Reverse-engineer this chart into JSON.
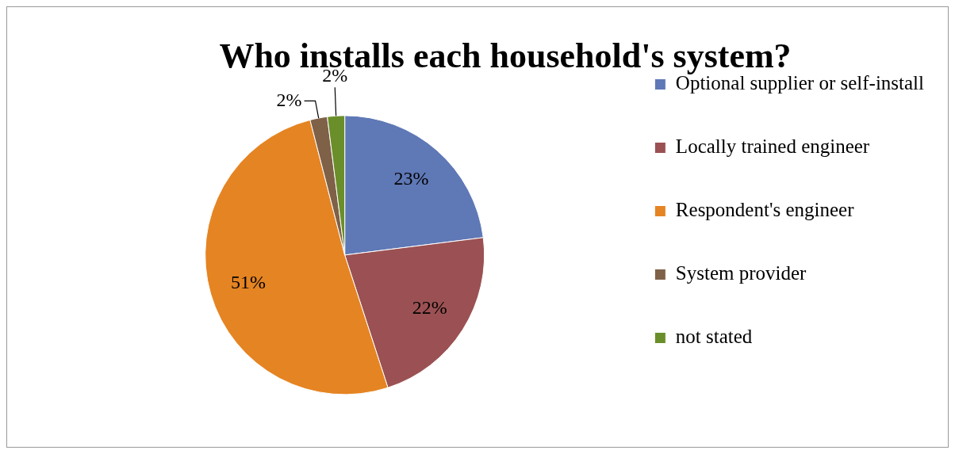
{
  "chart_data": {
    "type": "pie",
    "title": "Who installs each household's system?",
    "categories": [
      "Optional supplier or self-install",
      "Locally trained engineer",
      "Respondent's engineer",
      "System provider",
      "not stated"
    ],
    "values": [
      23,
      22,
      51,
      2,
      2
    ],
    "value_labels": [
      "23%",
      "22%",
      "51%",
      "2%",
      "2%"
    ],
    "colors": [
      "#5f78b6",
      "#9b5153",
      "#e58422",
      "#7f6148",
      "#6a8e2a"
    ],
    "legend": "right"
  }
}
